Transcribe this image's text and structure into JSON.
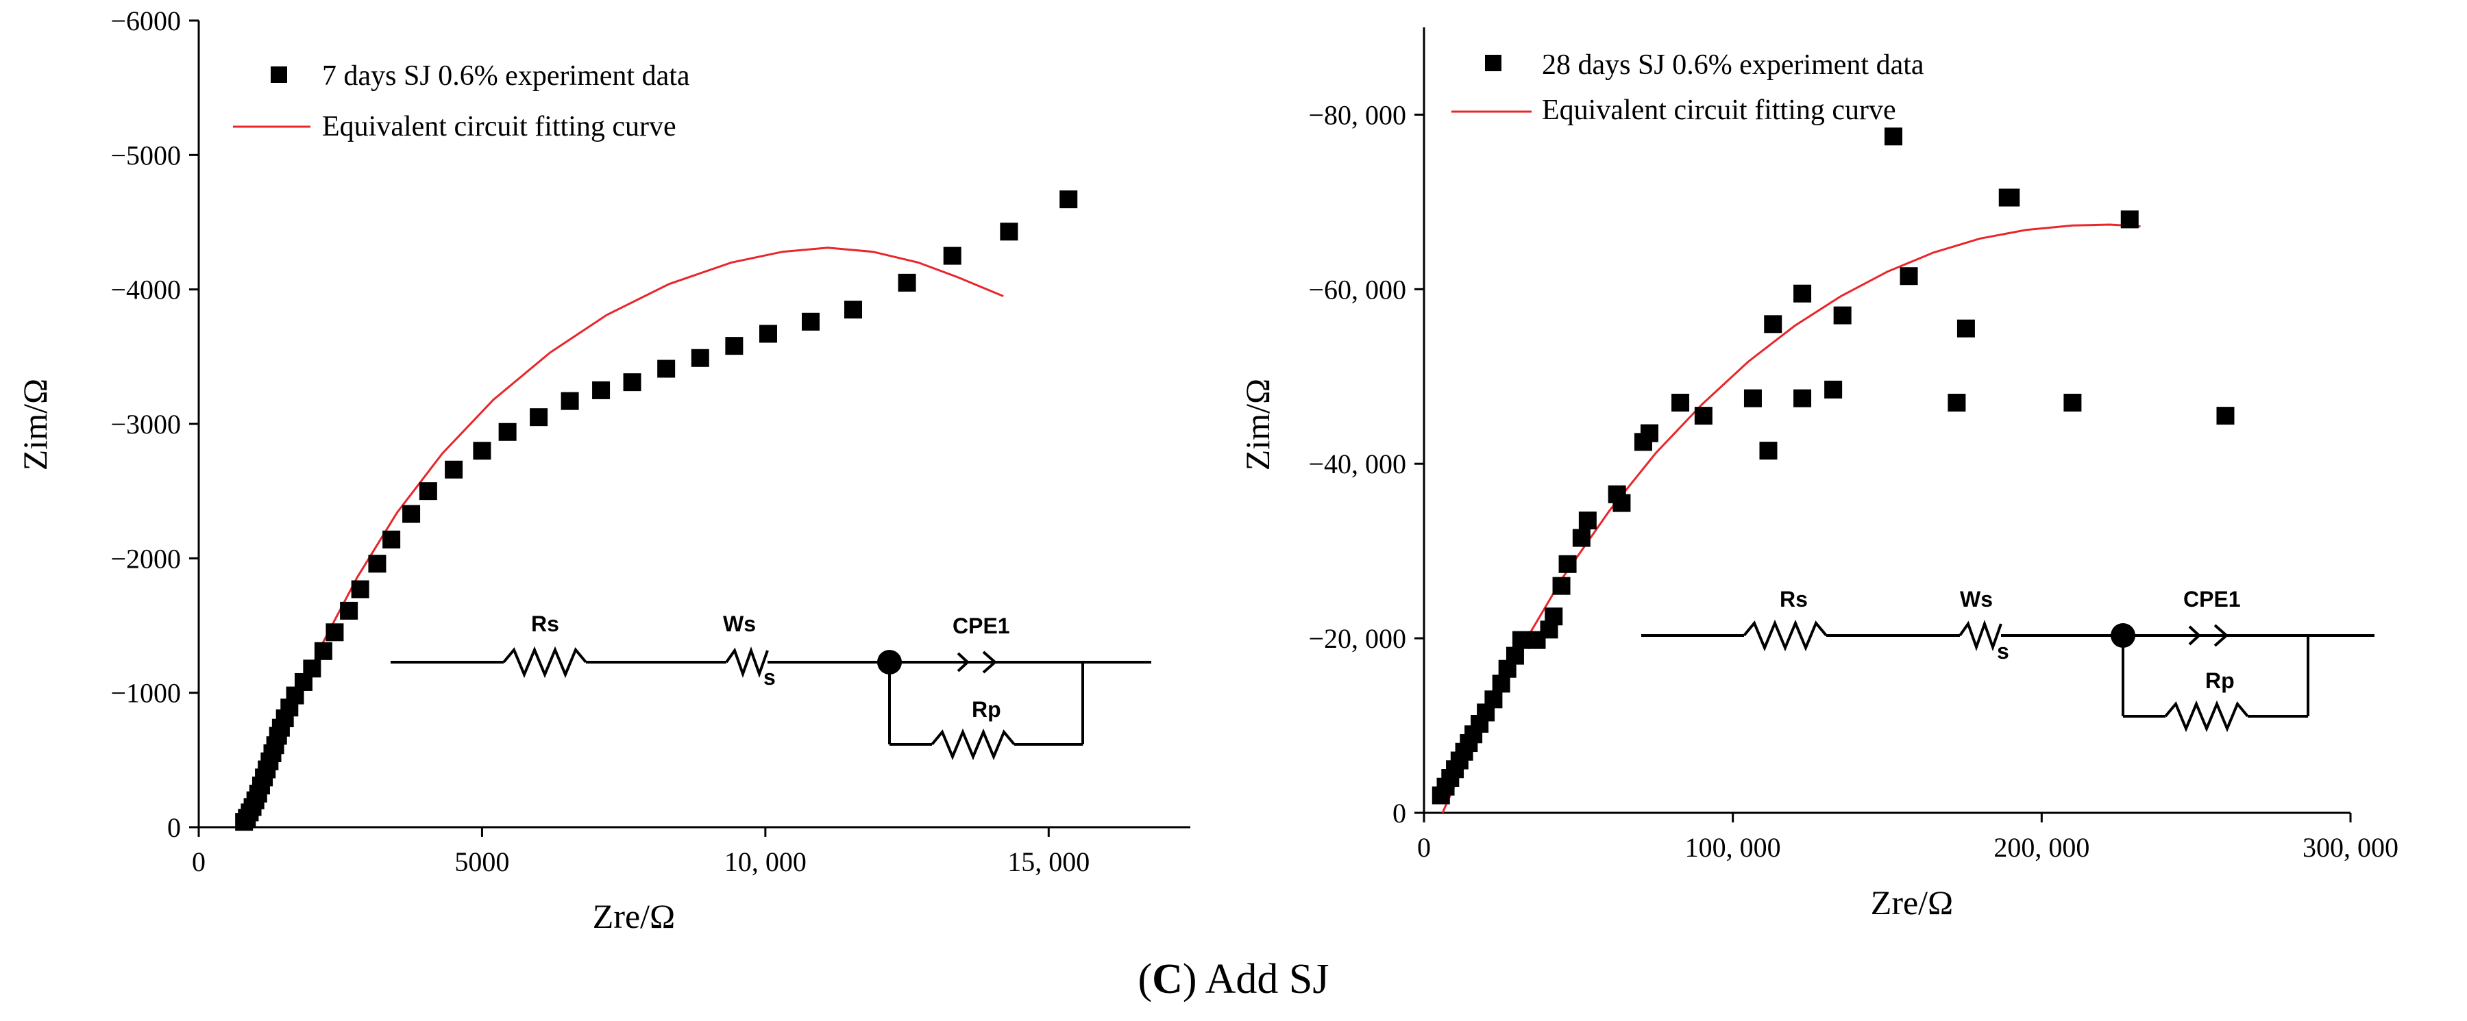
{
  "caption": {
    "prefix": "(",
    "letter": "C",
    "suffix": ") Add SJ"
  },
  "chart_data": [
    {
      "type": "scatter",
      "title": "",
      "xlabel": "Zre/Ω",
      "ylabel": "Zim/Ω",
      "xlim": [
        0,
        17500
      ],
      "ylim": [
        0,
        -6000
      ],
      "xticks": [
        0,
        5000,
        10000,
        15000
      ],
      "xtick_labels": [
        "0",
        "5000",
        "10, 000",
        "15, 000"
      ],
      "yticks": [
        0,
        -1000,
        -2000,
        -3000,
        -4000,
        -5000,
        -6000
      ],
      "ytick_labels": [
        "0",
        "−1000",
        "−2000",
        "−3000",
        "−4000",
        "−5000",
        "−6000"
      ],
      "legend": {
        "position": "top-left",
        "entries": [
          "7 days SJ 0.6% experiment data",
          "Equivalent circuit fitting curve"
        ]
      },
      "series": [
        {
          "name": "7 days SJ 0.6% experiment data",
          "kind": "markers",
          "color": "#000000",
          "points": [
            [
              800,
              -40
            ],
            [
              850,
              -70
            ],
            [
              900,
              -110
            ],
            [
              950,
              -150
            ],
            [
              1000,
              -200
            ],
            [
              1050,
              -250
            ],
            [
              1100,
              -310
            ],
            [
              1150,
              -370
            ],
            [
              1200,
              -430
            ],
            [
              1250,
              -490
            ],
            [
              1300,
              -550
            ],
            [
              1350,
              -610
            ],
            [
              1400,
              -680
            ],
            [
              1450,
              -740
            ],
            [
              1520,
              -810
            ],
            [
              1600,
              -890
            ],
            [
              1700,
              -980
            ],
            [
              1850,
              -1080
            ],
            [
              2000,
              -1180
            ],
            [
              2200,
              -1310
            ],
            [
              2400,
              -1450
            ],
            [
              2650,
              -1610
            ],
            [
              2850,
              -1770
            ],
            [
              3150,
              -1960
            ],
            [
              3400,
              -2140
            ],
            [
              3750,
              -2330
            ],
            [
              4050,
              -2500
            ],
            [
              4500,
              -2660
            ],
            [
              5000,
              -2800
            ],
            [
              5450,
              -2940
            ],
            [
              6000,
              -3050
            ],
            [
              6550,
              -3170
            ],
            [
              7100,
              -3250
            ],
            [
              7650,
              -3310
            ],
            [
              8250,
              -3410
            ],
            [
              8850,
              -3490
            ],
            [
              9450,
              -3580
            ],
            [
              10050,
              -3670
            ],
            [
              10800,
              -3760
            ],
            [
              11550,
              -3850
            ],
            [
              12500,
              -4050
            ],
            [
              13300,
              -4250
            ],
            [
              14300,
              -4430
            ],
            [
              15350,
              -4670
            ]
          ]
        },
        {
          "name": "Equivalent circuit fitting curve",
          "kind": "line",
          "color": "#e8262b",
          "points": [
            [
              850,
              0
            ],
            [
              1000,
              -210
            ],
            [
              1300,
              -520
            ],
            [
              1700,
              -920
            ],
            [
              2200,
              -1380
            ],
            [
              2800,
              -1860
            ],
            [
              3500,
              -2340
            ],
            [
              4300,
              -2780
            ],
            [
              5200,
              -3180
            ],
            [
              6200,
              -3530
            ],
            [
              7200,
              -3810
            ],
            [
              8300,
              -4040
            ],
            [
              9400,
              -4200
            ],
            [
              10300,
              -4280
            ],
            [
              11100,
              -4310
            ],
            [
              11900,
              -4280
            ],
            [
              12700,
              -4200
            ],
            [
              13400,
              -4090
            ],
            [
              14200,
              -3950
            ]
          ]
        }
      ],
      "circuit": {
        "labels": [
          "Rs",
          "Ws",
          "CPE1",
          "Rp"
        ],
        "subscript": "s"
      }
    },
    {
      "type": "scatter",
      "title": "",
      "xlabel": "Zre/Ω",
      "ylabel": "Zim/Ω",
      "xlim": [
        0,
        300000
      ],
      "ylim": [
        0,
        -90000
      ],
      "xticks": [
        0,
        100000,
        200000,
        300000
      ],
      "xtick_labels": [
        "0",
        "100, 000",
        "200, 000",
        "300, 000"
      ],
      "yticks": [
        0,
        -20000,
        -40000,
        -60000,
        -80000
      ],
      "ytick_labels": [
        "0",
        "−20, 000",
        "−40, 000",
        "−60, 000",
        "−80, 000"
      ],
      "legend": {
        "position": "top-left",
        "entries": [
          "28 days SJ 0.6% experiment data",
          "Equivalent circuit fitting curve"
        ]
      },
      "series": [
        {
          "name": "28 days SJ 0.6% experiment data",
          "kind": "markers",
          "color": "#000000",
          "points": [
            [
              5500,
              -2000
            ],
            [
              7000,
              -3000
            ],
            [
              8500,
              -4000
            ],
            [
              10000,
              -5000
            ],
            [
              11500,
              -6000
            ],
            [
              13000,
              -7000
            ],
            [
              14500,
              -8000
            ],
            [
              16000,
              -9000
            ],
            [
              18000,
              -10200
            ],
            [
              20000,
              -11500
            ],
            [
              22500,
              -13000
            ],
            [
              25000,
              -14800
            ],
            [
              27000,
              -16500
            ],
            [
              29500,
              -18000
            ],
            [
              31500,
              -19800
            ],
            [
              36500,
              -19800
            ],
            [
              40500,
              -21000
            ],
            [
              42000,
              -22500
            ],
            [
              44500,
              -26000
            ],
            [
              46500,
              -28500
            ],
            [
              51000,
              -31500
            ],
            [
              53000,
              -33500
            ],
            [
              62500,
              -36500
            ],
            [
              64000,
              -35500
            ],
            [
              71000,
              -42500
            ],
            [
              73000,
              -43500
            ],
            [
              83000,
              -47000
            ],
            [
              90500,
              -45500
            ],
            [
              106500,
              -47500
            ],
            [
              111500,
              -41500
            ],
            [
              113000,
              -56000
            ],
            [
              122500,
              -59500
            ],
            [
              122500,
              -47500
            ],
            [
              132500,
              -48500
            ],
            [
              135500,
              -57000
            ],
            [
              152000,
              -77500
            ],
            [
              157000,
              -61500
            ],
            [
              172500,
              -47000
            ],
            [
              175500,
              -55500
            ],
            [
              189000,
              -70500
            ],
            [
              190000,
              -70500
            ],
            [
              210000,
              -47000
            ],
            [
              228500,
              -68000
            ],
            [
              259500,
              -45500
            ]
          ]
        },
        {
          "name": "Equivalent circuit fitting curve",
          "kind": "line",
          "color": "#e8262b",
          "points": [
            [
              6000,
              0
            ],
            [
              15000,
              -7200
            ],
            [
              25000,
              -14500
            ],
            [
              35000,
              -21000
            ],
            [
              45000,
              -27000
            ],
            [
              60000,
              -34600
            ],
            [
              75000,
              -41200
            ],
            [
              90000,
              -46800
            ],
            [
              105000,
              -51700
            ],
            [
              120000,
              -55800
            ],
            [
              135000,
              -59200
            ],
            [
              150000,
              -62000
            ],
            [
              165000,
              -64200
            ],
            [
              180000,
              -65800
            ],
            [
              195000,
              -66800
            ],
            [
              210000,
              -67300
            ],
            [
              222000,
              -67400
            ],
            [
              232000,
              -67200
            ]
          ]
        }
      ],
      "circuit": {
        "labels": [
          "Rs",
          "Ws",
          "CPE1",
          "Rp"
        ],
        "subscript": "s"
      }
    }
  ]
}
